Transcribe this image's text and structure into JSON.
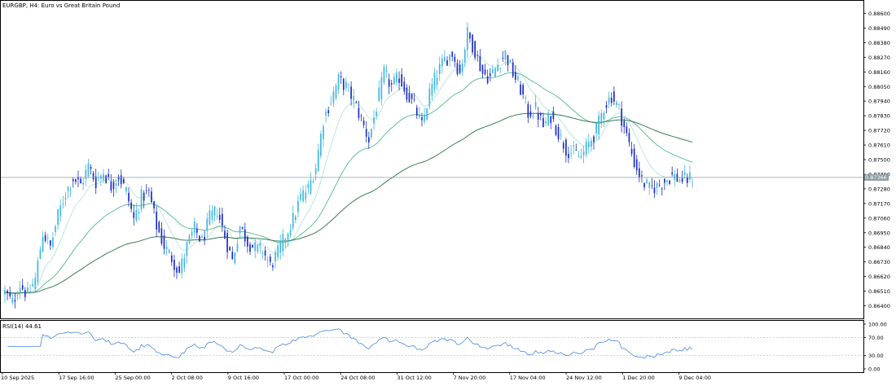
{
  "chart_data": {
    "type": "candlestick",
    "title": "EURGBP, H4:  Euro vs Great Britain Pound",
    "symbol": "EURGBP",
    "timeframe": "H4",
    "description": "Euro vs Great Britain Pound",
    "current_price": "0.87366",
    "ylim": [
      0.8634,
      0.8867
    ],
    "y_ticks": [
      "0.88600",
      "0.88490",
      "0.88380",
      "0.88270",
      "0.88160",
      "0.88050",
      "0.87940",
      "0.87830",
      "0.87720",
      "0.87610",
      "0.87500",
      "0.87390",
      "0.87280",
      "0.87170",
      "0.87060",
      "0.86950",
      "0.86840",
      "0.86730",
      "0.86620",
      "0.86510",
      "0.86400"
    ],
    "x_ticks": [
      "10 Sep 2025",
      "17 Sep 16:00",
      "25 Sep 00:00",
      "2 Oct 08:00",
      "9 Oct 16:00",
      "17 Oct 00:00",
      "24 Oct 08:00",
      "31 Oct 12:00",
      "7 Nov 20:00",
      "17 Nov 04:00",
      "24 Nov 12:00",
      "1 Dec 20:00",
      "9 Dec 04:00"
    ],
    "price_path": [
      [
        0,
        0.865
      ],
      [
        3,
        0.8642
      ],
      [
        6,
        0.8656
      ],
      [
        9,
        0.8648
      ],
      [
        12,
        0.866
      ],
      [
        15,
        0.8695
      ],
      [
        18,
        0.8684
      ],
      [
        21,
        0.8708
      ],
      [
        24,
        0.8725
      ],
      [
        27,
        0.8736
      ],
      [
        30,
        0.8731
      ],
      [
        33,
        0.8745
      ],
      [
        36,
        0.8733
      ],
      [
        39,
        0.8741
      ],
      [
        42,
        0.873
      ],
      [
        45,
        0.8738
      ],
      [
        48,
        0.8726
      ],
      [
        51,
        0.8705
      ],
      [
        54,
        0.8722
      ],
      [
        57,
        0.8725
      ],
      [
        60,
        0.87
      ],
      [
        63,
        0.8685
      ],
      [
        66,
        0.8676
      ],
      [
        69,
        0.8665
      ],
      [
        72,
        0.8685
      ],
      [
        75,
        0.8698
      ],
      [
        78,
        0.8688
      ],
      [
        81,
        0.8706
      ],
      [
        84,
        0.8712
      ],
      [
        87,
        0.8692
      ],
      [
        90,
        0.8674
      ],
      [
        93,
        0.87
      ],
      [
        96,
        0.8688
      ],
      [
        99,
        0.8683
      ],
      [
        102,
        0.8682
      ],
      [
        105,
        0.867
      ],
      [
        108,
        0.868
      ],
      [
        111,
        0.8693
      ],
      [
        114,
        0.8705
      ],
      [
        117,
        0.8722
      ],
      [
        120,
        0.8728
      ],
      [
        123,
        0.8745
      ],
      [
        126,
        0.878
      ],
      [
        129,
        0.8795
      ],
      [
        132,
        0.881
      ],
      [
        135,
        0.8805
      ],
      [
        138,
        0.8795
      ],
      [
        141,
        0.878
      ],
      [
        144,
        0.8765
      ],
      [
        147,
        0.879
      ],
      [
        150,
        0.8815
      ],
      [
        153,
        0.8805
      ],
      [
        156,
        0.8812
      ],
      [
        159,
        0.88
      ],
      [
        162,
        0.879
      ],
      [
        165,
        0.8775
      ],
      [
        168,
        0.88
      ],
      [
        171,
        0.8815
      ],
      [
        174,
        0.8825
      ],
      [
        177,
        0.883
      ],
      [
        180,
        0.8815
      ],
      [
        183,
        0.8845
      ],
      [
        186,
        0.8832
      ],
      [
        189,
        0.8815
      ],
      [
        192,
        0.8812
      ],
      [
        195,
        0.8822
      ],
      [
        198,
        0.883
      ],
      [
        201,
        0.8815
      ],
      [
        204,
        0.8803
      ],
      [
        207,
        0.8785
      ],
      [
        210,
        0.8788
      ],
      [
        213,
        0.8775
      ],
      [
        216,
        0.8783
      ],
      [
        219,
        0.877
      ],
      [
        222,
        0.8758
      ],
      [
        225,
        0.8755
      ],
      [
        228,
        0.8752
      ],
      [
        231,
        0.8762
      ],
      [
        234,
        0.8772
      ],
      [
        237,
        0.879
      ],
      [
        240,
        0.8798
      ],
      [
        243,
        0.8788
      ],
      [
        246,
        0.8768
      ],
      [
        249,
        0.8748
      ],
      [
        252,
        0.8734
      ],
      [
        255,
        0.8728
      ],
      [
        258,
        0.873
      ],
      [
        261,
        0.8734
      ],
      [
        264,
        0.8738
      ],
      [
        267,
        0.8735
      ],
      [
        270,
        0.8735
      ],
      [
        272,
        0.8737
      ]
    ],
    "moving_averages": [
      {
        "color": "#b8e7e0",
        "period_bars": 12
      },
      {
        "color": "#5fbf9a",
        "period_bars": 40
      },
      {
        "color": "#3b7d57",
        "period_bars": 110
      }
    ],
    "indicator": {
      "label": "RSI(14) 44.61",
      "name": "RSI(14)",
      "value": "44.61",
      "ylim": [
        0,
        100
      ],
      "y_ticks": [
        "100.00",
        "70.00",
        "30.00",
        "0.00"
      ],
      "levels": [
        70,
        30
      ]
    },
    "colors": {
      "bull": "#40b8e0",
      "bear": "#1e2ec4",
      "rsi_line": "#4a88d9",
      "grid_line": "#a0a0a0",
      "axis_text": "#000000",
      "price_label_bg": "#8c9aa3"
    }
  }
}
